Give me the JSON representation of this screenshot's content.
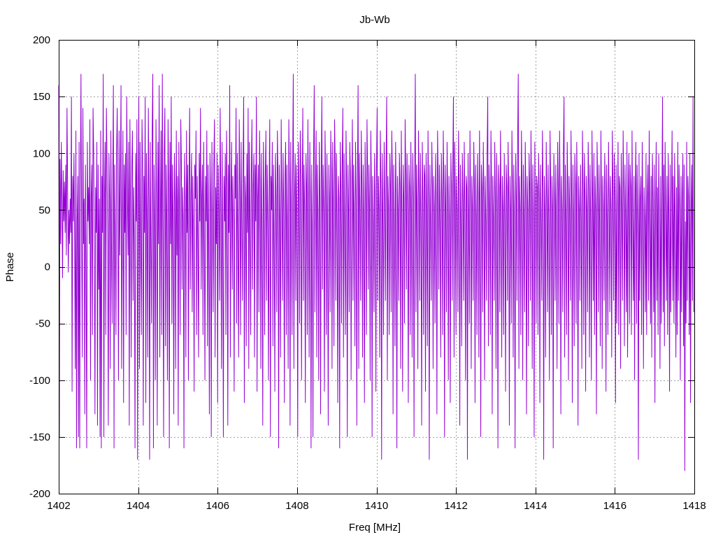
{
  "chart_data": {
    "type": "line",
    "title": "Jb-Wb",
    "xlabel": "Freq [MHz]",
    "ylabel": "Phase",
    "xlim": [
      1402,
      1418
    ],
    "ylim": [
      -200,
      200
    ],
    "x_ticks": [
      1402,
      1404,
      1406,
      1408,
      1410,
      1412,
      1414,
      1416,
      1418
    ],
    "x_tick_labels": [
      "1402",
      "1404",
      "1406",
      "1408",
      "1410",
      "1412",
      "1414",
      "1416",
      "1418"
    ],
    "y_ticks": [
      -200,
      -150,
      -100,
      -50,
      0,
      50,
      100,
      150,
      200
    ],
    "y_tick_labels": [
      "-200",
      "-150",
      "-100",
      "-50",
      "0",
      "50",
      "100",
      "150",
      "200"
    ],
    "grid": true,
    "legend": "none",
    "series_color": "#9400d3",
    "x_step": 0.016,
    "values": [
      160,
      -150,
      95,
      20,
      110,
      60,
      -10,
      85,
      40,
      75,
      30,
      90,
      10,
      140,
      70,
      -5,
      50,
      20,
      60,
      30,
      150,
      -110,
      80,
      40,
      100,
      20,
      -90,
      120,
      -160,
      40,
      80,
      -150,
      110,
      -160,
      60,
      170,
      30,
      -80,
      140,
      20,
      60,
      -130,
      90,
      0,
      -160,
      110,
      40,
      70,
      20,
      130,
      -100,
      60,
      90,
      -60,
      140,
      100,
      20,
      -130,
      70,
      30,
      110,
      -140,
      90,
      -20,
      60,
      -150,
      120,
      -160,
      80,
      30,
      170,
      -150,
      60,
      110,
      -60,
      140,
      90,
      20,
      -140,
      100,
      60,
      -90,
      120,
      20,
      -50,
      80,
      160,
      -160,
      90,
      30,
      -60,
      100,
      140,
      40,
      -100,
      120,
      10,
      80,
      160,
      -90,
      40,
      120,
      -120,
      90,
      30,
      100,
      -60,
      150,
      70,
      10,
      110,
      -140,
      130,
      50,
      -80,
      90,
      120,
      -30,
      70,
      20,
      -160,
      100,
      40,
      130,
      -170,
      60,
      150,
      -90,
      110,
      20,
      -60,
      130,
      90,
      -140,
      80,
      30,
      150,
      -120,
      100,
      40,
      -80,
      140,
      60,
      -170,
      110,
      20,
      -50,
      120,
      170,
      -160,
      90,
      40,
      -100,
      130,
      60,
      -140,
      110,
      20,
      160,
      -80,
      50,
      120,
      -60,
      170,
      30,
      -150,
      100,
      140,
      -70,
      90,
      40,
      -100,
      130,
      70,
      -160,
      110,
      20,
      150,
      -50,
      90,
      40,
      -130,
      100,
      60,
      -90,
      120,
      10,
      80,
      -140,
      110,
      50,
      -60,
      130,
      90,
      -20,
      70,
      40,
      -160,
      100,
      60,
      -80,
      120,
      30,
      90,
      -100,
      70,
      140,
      -20,
      60,
      100,
      -40,
      80,
      30,
      -110,
      90,
      60,
      120,
      -60,
      80,
      20,
      -80,
      100,
      40,
      140,
      -20,
      60,
      90,
      -60,
      110,
      30,
      -100,
      80,
      40,
      120,
      -70,
      90,
      20,
      -130,
      100,
      60,
      -150,
      110,
      40,
      -40,
      90,
      130,
      -80,
      70,
      20,
      100,
      -120,
      90,
      50,
      -30,
      140,
      60,
      -90,
      110,
      20,
      -150,
      80,
      40,
      100,
      -60,
      120,
      70,
      -140,
      90,
      30,
      160,
      -80,
      60,
      110,
      -20,
      80,
      40,
      -110,
      90,
      60,
      140,
      -50,
      100,
      20,
      -80,
      130,
      70,
      -60,
      110,
      40,
      -30,
      90,
      150,
      -120,
      80,
      60,
      -70,
      100,
      30,
      140,
      -90,
      110,
      40,
      -60,
      80,
      130,
      -20,
      70,
      100,
      -80,
      90,
      40,
      150,
      -110,
      60,
      90,
      -40,
      120,
      70,
      -90,
      100,
      30,
      -140,
      110,
      60,
      -60,
      80,
      120,
      -30,
      90,
      40,
      -100,
      70,
      130,
      -150,
      80,
      50,
      110,
      -70,
      90,
      20,
      -110,
      100,
      60,
      -40,
      120,
      80,
      -160,
      90,
      40,
      -80,
      130,
      60,
      -30,
      100,
      50,
      -120,
      80,
      110,
      -60,
      90,
      30,
      -90,
      130,
      70,
      -140,
      110,
      50,
      -60,
      80,
      170,
      -90,
      60,
      100,
      -30,
      90,
      40,
      -150,
      110,
      70,
      -50,
      120,
      80,
      -100,
      60,
      140,
      -30,
      90,
      50,
      -120,
      100,
      70,
      -60,
      130,
      40,
      -80,
      110,
      60,
      -160,
      90,
      30,
      -150,
      100,
      160,
      -40,
      70,
      120,
      -80,
      90,
      40,
      -100,
      110,
      60,
      -130,
      80,
      150,
      -20,
      90,
      50,
      -110,
      120,
      70,
      -60,
      100,
      30,
      -140,
      90,
      60,
      -40,
      120,
      80,
      -90,
      110,
      50,
      -70,
      130,
      90,
      -30,
      100,
      40,
      -120,
      80,
      60,
      -160,
      110,
      70,
      -50,
      90,
      140,
      -80,
      100,
      30,
      -60,
      120,
      70,
      -150,
      90,
      50,
      -40,
      110,
      80,
      -100,
      60,
      130,
      -30,
      90,
      40,
      -70,
      110,
      60,
      -140,
      80,
      160,
      -90,
      100,
      50,
      -30,
      120,
      70,
      -80,
      90,
      40,
      -120,
      110,
      60,
      -60,
      130,
      80,
      -20,
      90,
      50,
      -100,
      120,
      70,
      -150,
      80,
      40,
      -40,
      100,
      60,
      -110,
      90,
      140,
      -30,
      80,
      50,
      -80,
      120,
      70,
      -170,
      100,
      40,
      -60,
      110,
      60,
      -30,
      90,
      150,
      -100,
      80,
      50,
      -60,
      100,
      70,
      -40,
      120,
      80,
      -130,
      90,
      40,
      -70,
      110,
      60,
      -160,
      80,
      50,
      -30,
      100,
      70,
      -90,
      120,
      40,
      -110,
      90,
      60,
      -50,
      130,
      80,
      -20,
      100,
      50,
      -120,
      90,
      70,
      -60,
      110,
      40,
      -80,
      100,
      60,
      -150,
      80,
      170,
      -40,
      90,
      50,
      -90,
      120,
      70,
      -30,
      100,
      40,
      -140,
      110,
      60,
      -60,
      90,
      80,
      -110,
      100,
      50,
      -70,
      120,
      60,
      -170,
      90,
      40,
      -30,
      110,
      70,
      -90,
      80,
      50,
      -50,
      100,
      60,
      -130,
      120,
      80,
      -20,
      90,
      40,
      -80,
      100,
      60,
      -60,
      120,
      70,
      -150,
      90,
      50,
      -40,
      110,
      60,
      -100,
      80,
      40,
      -120,
      100,
      70,
      -30,
      90,
      150,
      -80,
      110,
      60,
      -60,
      80,
      50,
      -40,
      120,
      70,
      -140,
      90,
      40,
      -70,
      100,
      60,
      -30,
      110,
      50,
      -100,
      80,
      70,
      -170,
      100,
      40,
      -50,
      120,
      60,
      -90,
      80,
      50,
      -30,
      110,
      70,
      -120,
      90,
      40,
      -60,
      100,
      60,
      -80,
      120,
      50,
      -150,
      90,
      70,
      -40,
      110,
      60,
      -100,
      80,
      40,
      -30,
      100,
      150,
      -70,
      90,
      50,
      -60,
      120,
      70,
      -130,
      80,
      40,
      -30,
      110,
      60,
      -90,
      100,
      50,
      -160,
      90,
      70,
      -40,
      120,
      60,
      -80,
      80,
      50,
      -60,
      100,
      40,
      -110,
      90,
      70,
      -30,
      110,
      60,
      -140,
      80,
      50,
      -50,
      120,
      70,
      -80,
      90,
      40,
      -160,
      100,
      60,
      -30,
      110,
      170,
      -90,
      80,
      50,
      -60,
      120,
      70,
      -100,
      90,
      40,
      -40,
      110,
      60,
      -130,
      80,
      50,
      -70,
      100,
      70,
      -30,
      120,
      60,
      -90,
      90,
      40,
      -150,
      110,
      50,
      -50,
      80,
      70,
      -60,
      100,
      60,
      -120,
      90,
      40,
      -30,
      120,
      70,
      -170,
      80,
      50,
      -80,
      110,
      60,
      -40,
      90,
      40,
      -100,
      120,
      70,
      -60,
      80,
      50,
      -160,
      100,
      60,
      -30,
      90,
      40,
      -90,
      110,
      70,
      -50,
      120,
      60,
      -130,
      80,
      50,
      -40,
      100,
      150,
      -80,
      90,
      40,
      -60,
      110,
      70,
      -100,
      80,
      50,
      -30,
      120,
      60,
      -120,
      90,
      40,
      -70,
      100,
      70,
      -50,
      110,
      60,
      -140,
      80,
      50,
      -30,
      90,
      40,
      -90,
      120,
      70,
      -60,
      100,
      60,
      -110,
      80,
      50,
      -40,
      110,
      70,
      -80,
      90,
      40,
      -100,
      120,
      60,
      -30,
      100,
      -60,
      80,
      50,
      -130,
      110,
      70,
      -40,
      90,
      40,
      -70,
      120,
      60,
      -90,
      80,
      50,
      -30,
      100,
      70,
      -110,
      90,
      40,
      -60,
      110,
      60,
      -40,
      80,
      50,
      -80,
      120,
      70,
      -30,
      100,
      60,
      -120,
      90,
      -50,
      40,
      110,
      -60,
      80,
      70,
      -90,
      100,
      50,
      -30,
      120,
      60,
      -70,
      90,
      40,
      -40,
      110,
      -80,
      60,
      100,
      -50,
      90,
      70,
      -60,
      120,
      40,
      -30,
      80,
      -100,
      60,
      110,
      -50,
      90,
      40,
      -170,
      100,
      -30,
      60,
      80,
      -60,
      110,
      50,
      -90,
      70,
      40,
      -40,
      100,
      -60,
      60,
      90,
      -30,
      120,
      40,
      -50,
      80,
      -80,
      100,
      60,
      -40,
      90,
      -120,
      50,
      110,
      -30,
      70,
      -60,
      100,
      40,
      -90,
      80,
      -50,
      60,
      150,
      -40,
      90,
      -70,
      110,
      50,
      -30,
      80,
      -60,
      100,
      40,
      -110,
      90,
      -40,
      60,
      120,
      -30,
      80,
      -50,
      100,
      40,
      -80,
      70,
      -60,
      110,
      -30,
      90,
      50,
      -100,
      80,
      -40,
      60,
      100,
      -70,
      90,
      -180,
      40,
      -50,
      110,
      -30,
      80,
      60,
      -60,
      100,
      -120,
      50,
      90,
      -30,
      150,
      -40
    ]
  }
}
